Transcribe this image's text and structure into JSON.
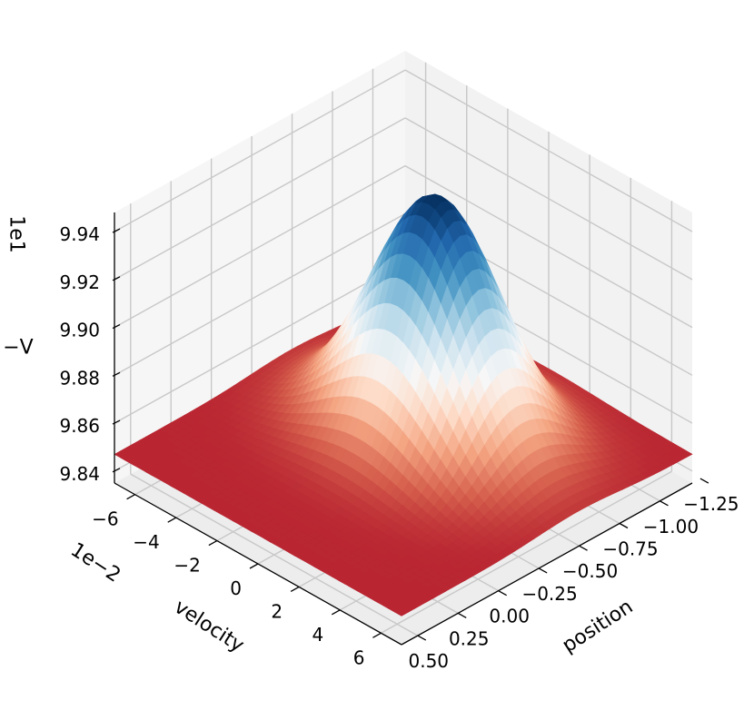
{
  "chart_data": {
    "type": "surface3d",
    "colormap": "RdBu",
    "background": "#ffffff",
    "pane_color": "#f2f2f2",
    "grid": true,
    "xlabel": "position",
    "ylabel": "velocity",
    "zlabel": "−V",
    "y_offset_label": "1e−2",
    "z_offset_label": "1e1",
    "x_ticks": [
      {
        "value": -1.25,
        "label": "−1.25"
      },
      {
        "value": -1.0,
        "label": "−1.00"
      },
      {
        "value": -0.75,
        "label": "−0.75"
      },
      {
        "value": -0.5,
        "label": "−0.50"
      },
      {
        "value": -0.25,
        "label": "−0.25"
      },
      {
        "value": 0.0,
        "label": "0.00"
      },
      {
        "value": 0.25,
        "label": "0.25"
      },
      {
        "value": 0.5,
        "label": "0.50"
      }
    ],
    "y_ticks": [
      {
        "value": -6,
        "label": "−6"
      },
      {
        "value": -4,
        "label": "−4"
      },
      {
        "value": -2,
        "label": "−2"
      },
      {
        "value": 0,
        "label": "0"
      },
      {
        "value": 2,
        "label": "2"
      },
      {
        "value": 4,
        "label": "4"
      },
      {
        "value": 6,
        "label": "6"
      }
    ],
    "z_ticks": [
      {
        "value": 9.84,
        "label": "9.84"
      },
      {
        "value": 9.86,
        "label": "9.86"
      },
      {
        "value": 9.88,
        "label": "9.88"
      },
      {
        "value": 9.9,
        "label": "9.90"
      },
      {
        "value": 9.92,
        "label": "9.92"
      },
      {
        "value": 9.94,
        "label": "9.94"
      }
    ],
    "xlim": [
      -1.2,
      0.6
    ],
    "ylim": [
      -7,
      7
    ],
    "zlim": [
      9.835,
      9.948
    ],
    "surface": {
      "base": 9.847,
      "peak": 9.947,
      "peak_position": -0.5,
      "peak_velocity": 0,
      "position_spread": 0.25,
      "velocity_spread": 2.6
    }
  }
}
